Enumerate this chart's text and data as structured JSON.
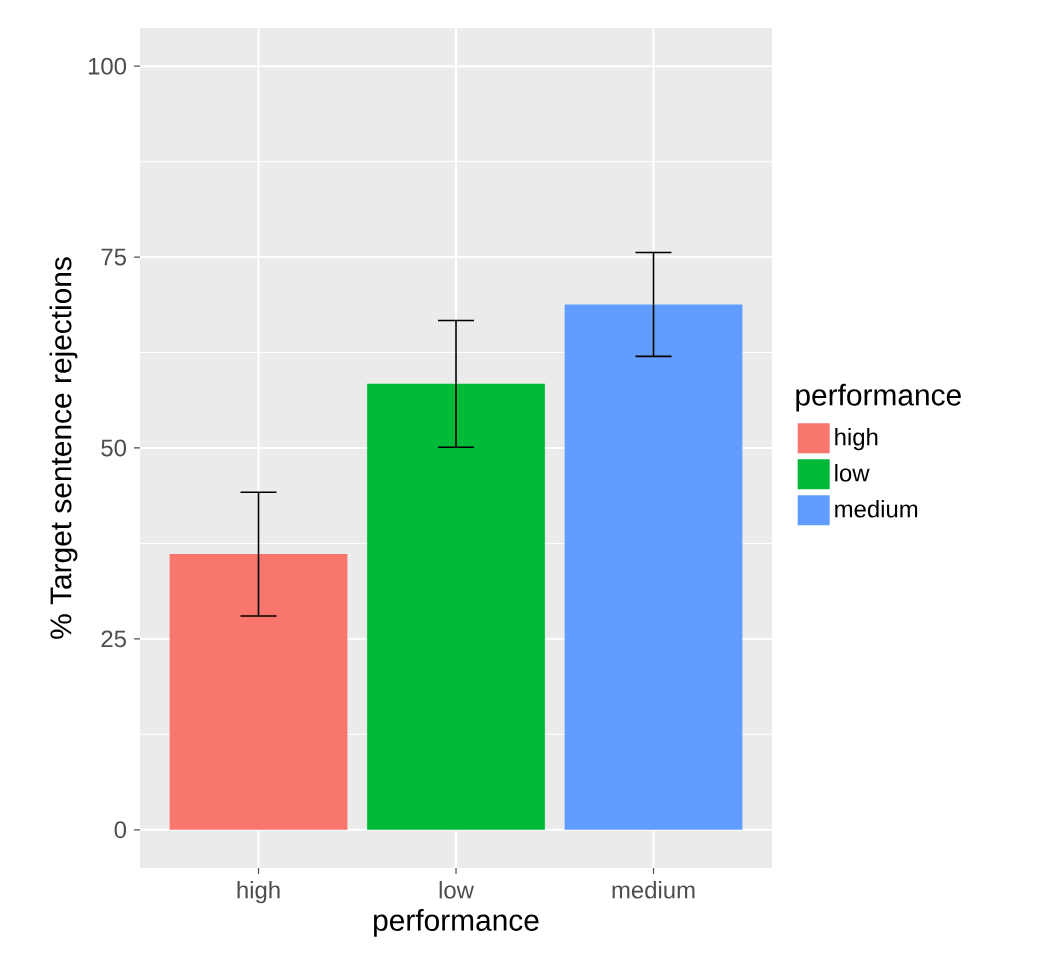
{
  "chart_data": {
    "type": "bar",
    "xlabel": "performance",
    "ylabel": "% Target sentence rejections",
    "legend_title": "performance",
    "categories": [
      "high",
      "low",
      "medium"
    ],
    "series": [
      {
        "name": "high",
        "color": "#f8766d",
        "values": [
          36.1,
          null,
          null
        ],
        "errors": [
          8.1,
          null,
          null
        ]
      },
      {
        "name": "low",
        "color": "#00ba38",
        "values": [
          null,
          58.4,
          null
        ],
        "errors": [
          null,
          8.3,
          null
        ]
      },
      {
        "name": "medium",
        "color": "#619cff",
        "values": [
          null,
          null,
          68.8
        ],
        "errors": [
          null,
          null,
          6.8
        ]
      }
    ],
    "ylim": [
      -5,
      105
    ],
    "yticks": [
      0,
      25,
      50,
      75,
      100
    ],
    "grid": true,
    "legend": "right"
  }
}
